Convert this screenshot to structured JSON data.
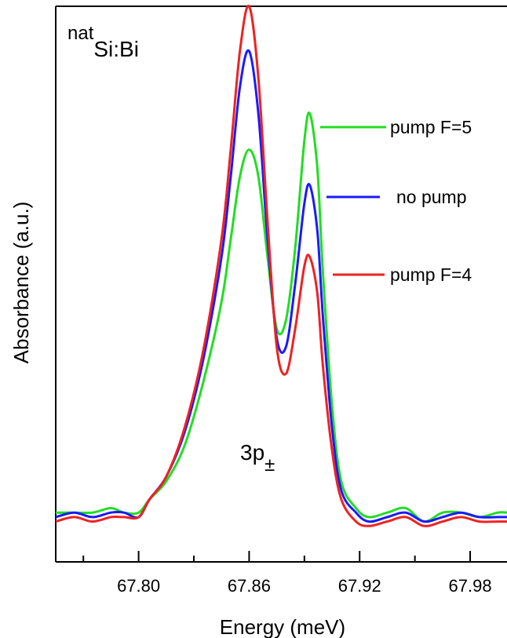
{
  "chart_data": {
    "type": "line",
    "xlabel": "Energy (meV)",
    "ylabel": "Absorbance (a.u.)",
    "xlim": [
      67.755,
      68.0
    ],
    "ylim": [
      -0.1,
      1.14
    ],
    "x_ticks": [
      67.8,
      67.86,
      67.92,
      67.98
    ],
    "x_tick_labels": [
      "67.80",
      "67.86",
      "67.92",
      "67.98"
    ],
    "y_tick_labels_shown": false,
    "grid": false,
    "legend_placement": "right",
    "annotations": {
      "sample": {
        "sup": "nat",
        "main": "Si:Bi"
      },
      "peak": {
        "main": "3p",
        "sub": "±"
      }
    },
    "series": [
      {
        "name": "pump F=5",
        "color": "#22dd22",
        "x": [
          67.755,
          67.765,
          67.775,
          67.785,
          67.792,
          67.8,
          67.806,
          67.815,
          67.825,
          67.835,
          67.845,
          67.85,
          67.855,
          67.86,
          67.865,
          67.87,
          67.875,
          67.88,
          67.885,
          67.89,
          67.893,
          67.897,
          67.9,
          67.905,
          67.91,
          67.918,
          67.925,
          67.935,
          67.945,
          67.955,
          67.965,
          67.975,
          67.985,
          67.995,
          68.0
        ],
        "y": [
          0.01,
          0.01,
          0.01,
          0.02,
          0.01,
          0.01,
          0.04,
          0.08,
          0.16,
          0.3,
          0.48,
          0.62,
          0.76,
          0.82,
          0.76,
          0.58,
          0.42,
          0.44,
          0.6,
          0.84,
          0.9,
          0.78,
          0.55,
          0.25,
          0.08,
          0.02,
          0.0,
          0.01,
          0.02,
          -0.01,
          0.01,
          0.01,
          0.0,
          0.01,
          0.01
        ]
      },
      {
        "name": "no pump",
        "color": "#1a1aff",
        "x": [
          67.755,
          67.765,
          67.775,
          67.785,
          67.792,
          67.8,
          67.806,
          67.815,
          67.825,
          67.835,
          67.845,
          67.85,
          67.855,
          67.86,
          67.865,
          67.87,
          67.875,
          67.88,
          67.885,
          67.89,
          67.893,
          67.897,
          67.9,
          67.905,
          67.91,
          67.918,
          67.925,
          67.935,
          67.945,
          67.955,
          67.965,
          67.975,
          67.985,
          67.995,
          68.0
        ],
        "y": [
          0.0,
          0.01,
          0.0,
          0.01,
          0.01,
          0.0,
          0.04,
          0.09,
          0.19,
          0.35,
          0.58,
          0.76,
          0.96,
          1.04,
          0.9,
          0.62,
          0.4,
          0.38,
          0.52,
          0.7,
          0.74,
          0.64,
          0.45,
          0.2,
          0.06,
          0.01,
          -0.01,
          0.0,
          0.01,
          -0.01,
          0.0,
          0.01,
          0.0,
          0.0,
          0.0
        ]
      },
      {
        "name": "pump F=4",
        "color": "#ee2222",
        "x": [
          67.755,
          67.765,
          67.775,
          67.785,
          67.792,
          67.8,
          67.806,
          67.815,
          67.825,
          67.835,
          67.845,
          67.85,
          67.855,
          67.86,
          67.865,
          67.87,
          67.875,
          67.88,
          67.885,
          67.89,
          67.893,
          67.897,
          67.9,
          67.905,
          67.91,
          67.918,
          67.925,
          67.935,
          67.945,
          67.955,
          67.965,
          67.975,
          67.985,
          67.995,
          68.0
        ],
        "y": [
          -0.01,
          0.0,
          -0.01,
          0.0,
          0.0,
          0.0,
          0.04,
          0.09,
          0.2,
          0.37,
          0.62,
          0.82,
          1.04,
          1.14,
          0.98,
          0.66,
          0.38,
          0.32,
          0.42,
          0.56,
          0.58,
          0.5,
          0.34,
          0.15,
          0.04,
          -0.01,
          -0.02,
          -0.01,
          0.0,
          -0.02,
          -0.01,
          0.0,
          -0.01,
          -0.01,
          -0.01
        ]
      }
    ]
  }
}
